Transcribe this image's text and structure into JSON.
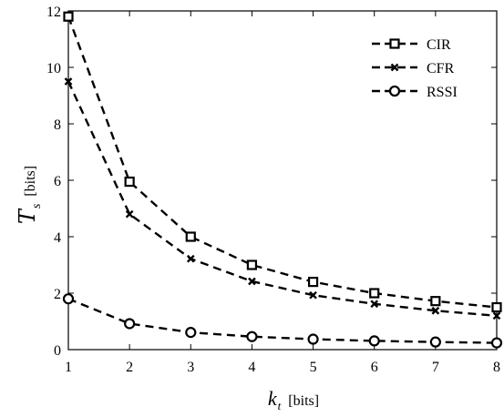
{
  "chart_data": {
    "type": "line",
    "x": [
      1,
      2,
      3,
      4,
      5,
      6,
      7,
      8
    ],
    "xlim": [
      1,
      8
    ],
    "ylim": [
      0,
      12
    ],
    "xticks": [
      "1",
      "2",
      "3",
      "4",
      "5",
      "6",
      "7",
      "8"
    ],
    "yticks": [
      "0",
      "2",
      "4",
      "6",
      "8",
      "10",
      "12"
    ],
    "xlabel": {
      "symbol": "k",
      "subscript": "t",
      "unit": "[bits]"
    },
    "ylabel": {
      "symbol": "T",
      "subscript": "s",
      "unit": "[bits]"
    },
    "grid": false,
    "legend_position": "top-right",
    "series": [
      {
        "name": "CIR",
        "marker": "square",
        "color": "#000000",
        "values": [
          11.8,
          5.95,
          4.0,
          3.0,
          2.4,
          2.0,
          1.72,
          1.5
        ]
      },
      {
        "name": "CFR",
        "marker": "x",
        "color": "#000000",
        "values": [
          9.5,
          4.8,
          3.22,
          2.42,
          1.93,
          1.62,
          1.38,
          1.2
        ]
      },
      {
        "name": "RSSI",
        "marker": "circle",
        "color": "#000000",
        "values": [
          1.8,
          0.92,
          0.61,
          0.46,
          0.37,
          0.31,
          0.27,
          0.24
        ]
      }
    ]
  }
}
